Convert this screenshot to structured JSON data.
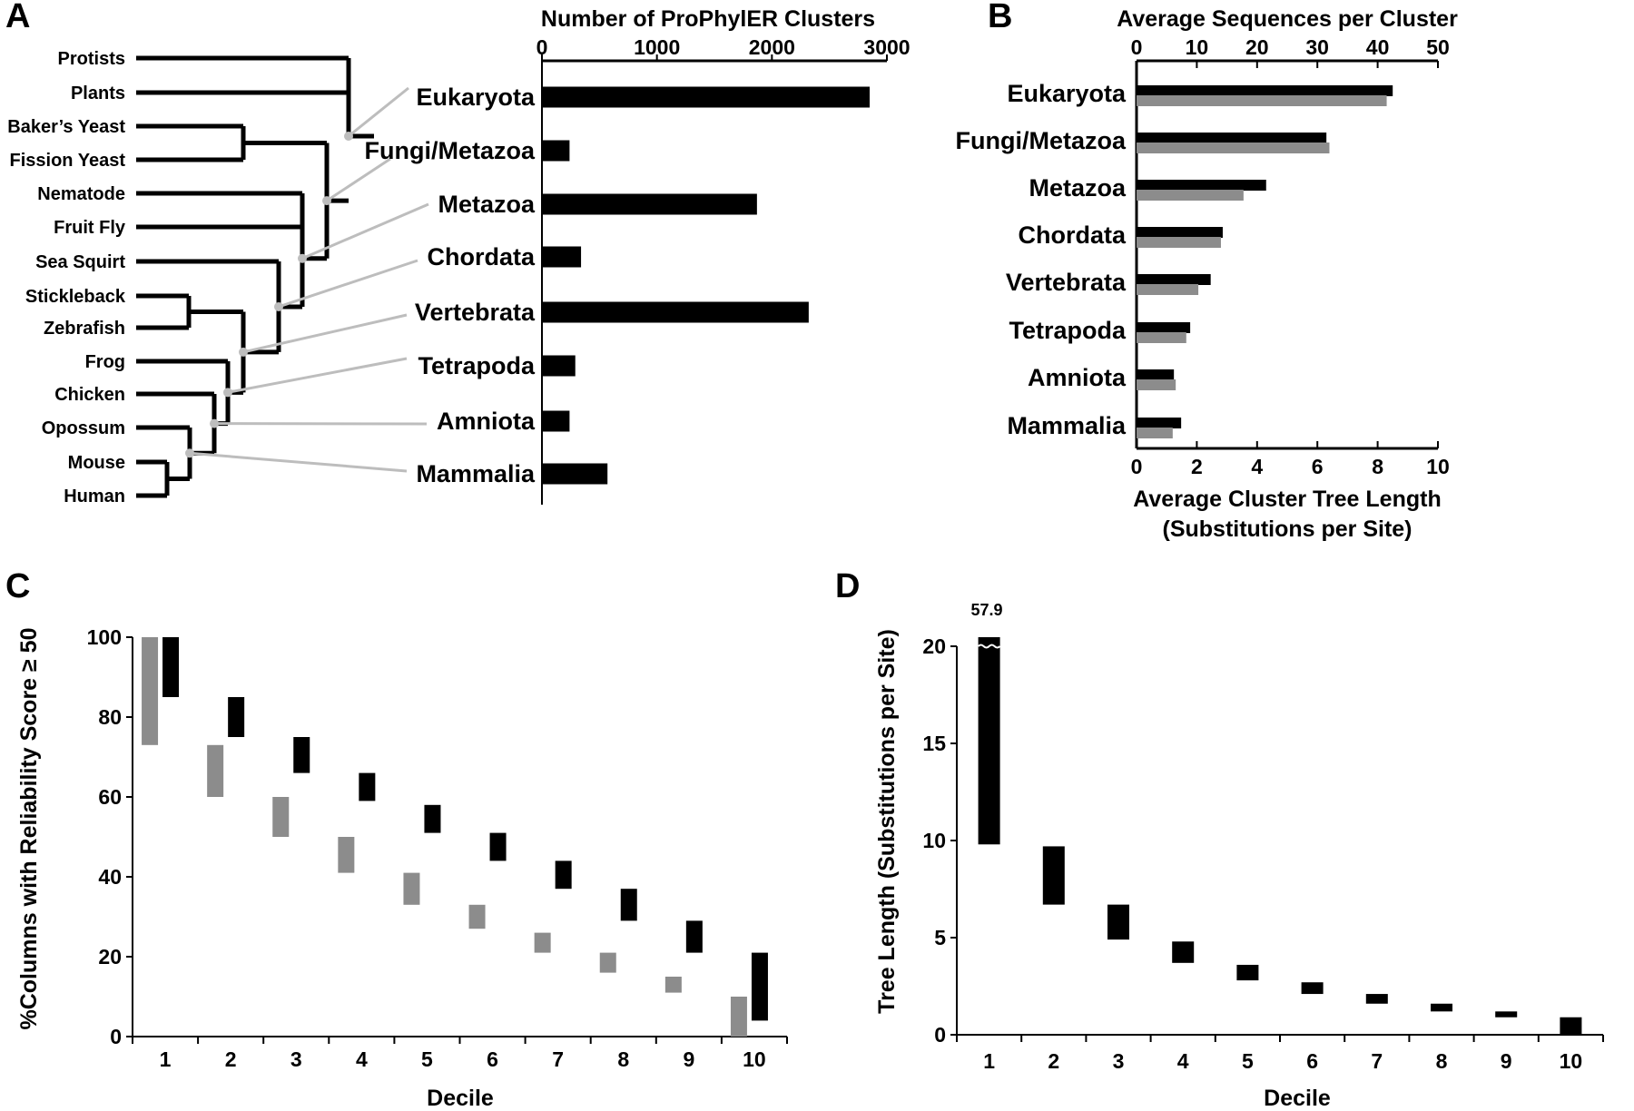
{
  "colors": {
    "primary": "#000000",
    "secondary": "#8c8c8c",
    "leader": "#bdbdbd"
  },
  "panels": {
    "a": "A",
    "b": "B",
    "c": "C",
    "d": "D"
  },
  "chart_data": [
    {
      "panel": "A",
      "type": "bar",
      "orientation": "horizontal",
      "title": "Number of ProPhylER Clusters",
      "xlim": [
        0,
        3000
      ],
      "xticks": [
        "0",
        "1000",
        "2000",
        "3000"
      ],
      "categories": [
        "Eukaryota",
        "Fungi/Metazoa",
        "Metazoa",
        "Chordata",
        "Vertebrata",
        "Tetrapoda",
        "Amniota",
        "Mammalia"
      ],
      "values": [
        2850,
        240,
        1870,
        340,
        2320,
        290,
        240,
        570
      ],
      "species": [
        "Protists",
        "Plants",
        "Baker’s Yeast",
        "Fission Yeast",
        "Nematode",
        "Fruit Fly",
        "Sea Squirt",
        "Stickleback",
        "Zebrafish",
        "Frog",
        "Chicken",
        "Opossum",
        "Mouse",
        "Human"
      ]
    },
    {
      "panel": "B",
      "type": "bar",
      "orientation": "horizontal",
      "top_axis_title": "Average Sequences per Cluster",
      "top_xlim": [
        0,
        50
      ],
      "top_xticks": [
        "0",
        "10",
        "20",
        "30",
        "40",
        "50"
      ],
      "bottom_axis_title_line1": "Average Cluster Tree Length",
      "bottom_axis_title_line2": "(Substitutions per Site)",
      "bottom_xlim": [
        0,
        10
      ],
      "bottom_xticks": [
        "0",
        "2",
        "4",
        "6",
        "8",
        "10"
      ],
      "categories": [
        "Eukaryota",
        "Fungi/Metazoa",
        "Metazoa",
        "Chordata",
        "Vertebrata",
        "Tetrapoda",
        "Amniota",
        "Mammalia"
      ],
      "series": [
        {
          "color": "#000000",
          "axis": "top",
          "values": [
            42.5,
            31.5,
            21.5,
            14.3,
            12.3,
            8.9,
            6.2,
            7.4
          ]
        },
        {
          "color": "#8c8c8c",
          "axis": "bottom",
          "values": [
            8.3,
            6.4,
            3.55,
            2.8,
            2.05,
            1.65,
            1.3,
            1.2
          ]
        }
      ]
    },
    {
      "panel": "C",
      "type": "range",
      "ylabel": "%Columns with Reliability Score ≥ 50",
      "xlabel": "Decile",
      "ylim": [
        0,
        100
      ],
      "yticks": [
        "0",
        "20",
        "40",
        "60",
        "80",
        "100"
      ],
      "categories": [
        "1",
        "2",
        "3",
        "4",
        "5",
        "6",
        "7",
        "8",
        "9",
        "10"
      ],
      "series": [
        {
          "color": "#8c8c8c",
          "ranges": [
            [
              73,
              100
            ],
            [
              60,
              73
            ],
            [
              50,
              60
            ],
            [
              41,
              50
            ],
            [
              33,
              41
            ],
            [
              27,
              33
            ],
            [
              21,
              26
            ],
            [
              16,
              21
            ],
            [
              11,
              15
            ],
            [
              0,
              10
            ]
          ]
        },
        {
          "color": "#000000",
          "ranges": [
            [
              85,
              100
            ],
            [
              75,
              85
            ],
            [
              66,
              75
            ],
            [
              59,
              66
            ],
            [
              51,
              58
            ],
            [
              44,
              51
            ],
            [
              37,
              44
            ],
            [
              29,
              37
            ],
            [
              21,
              29
            ],
            [
              4,
              21
            ]
          ]
        }
      ]
    },
    {
      "panel": "D",
      "type": "range",
      "ylabel": "Tree Length (Substitutions per Site)",
      "xlabel": "Decile",
      "ylim": [
        0,
        20
      ],
      "yticks": [
        "0",
        "5",
        "10",
        "15",
        "20"
      ],
      "categories": [
        "1",
        "2",
        "3",
        "4",
        "5",
        "6",
        "7",
        "8",
        "9",
        "10"
      ],
      "ranges": [
        [
          9.8,
          57.9
        ],
        [
          6.7,
          9.7
        ],
        [
          4.9,
          6.7
        ],
        [
          3.7,
          4.8
        ],
        [
          2.8,
          3.6
        ],
        [
          2.1,
          2.7
        ],
        [
          1.6,
          2.1
        ],
        [
          1.2,
          1.6
        ],
        [
          0.9,
          1.2
        ],
        [
          0,
          0.9
        ]
      ],
      "break_label": "57.9"
    }
  ]
}
